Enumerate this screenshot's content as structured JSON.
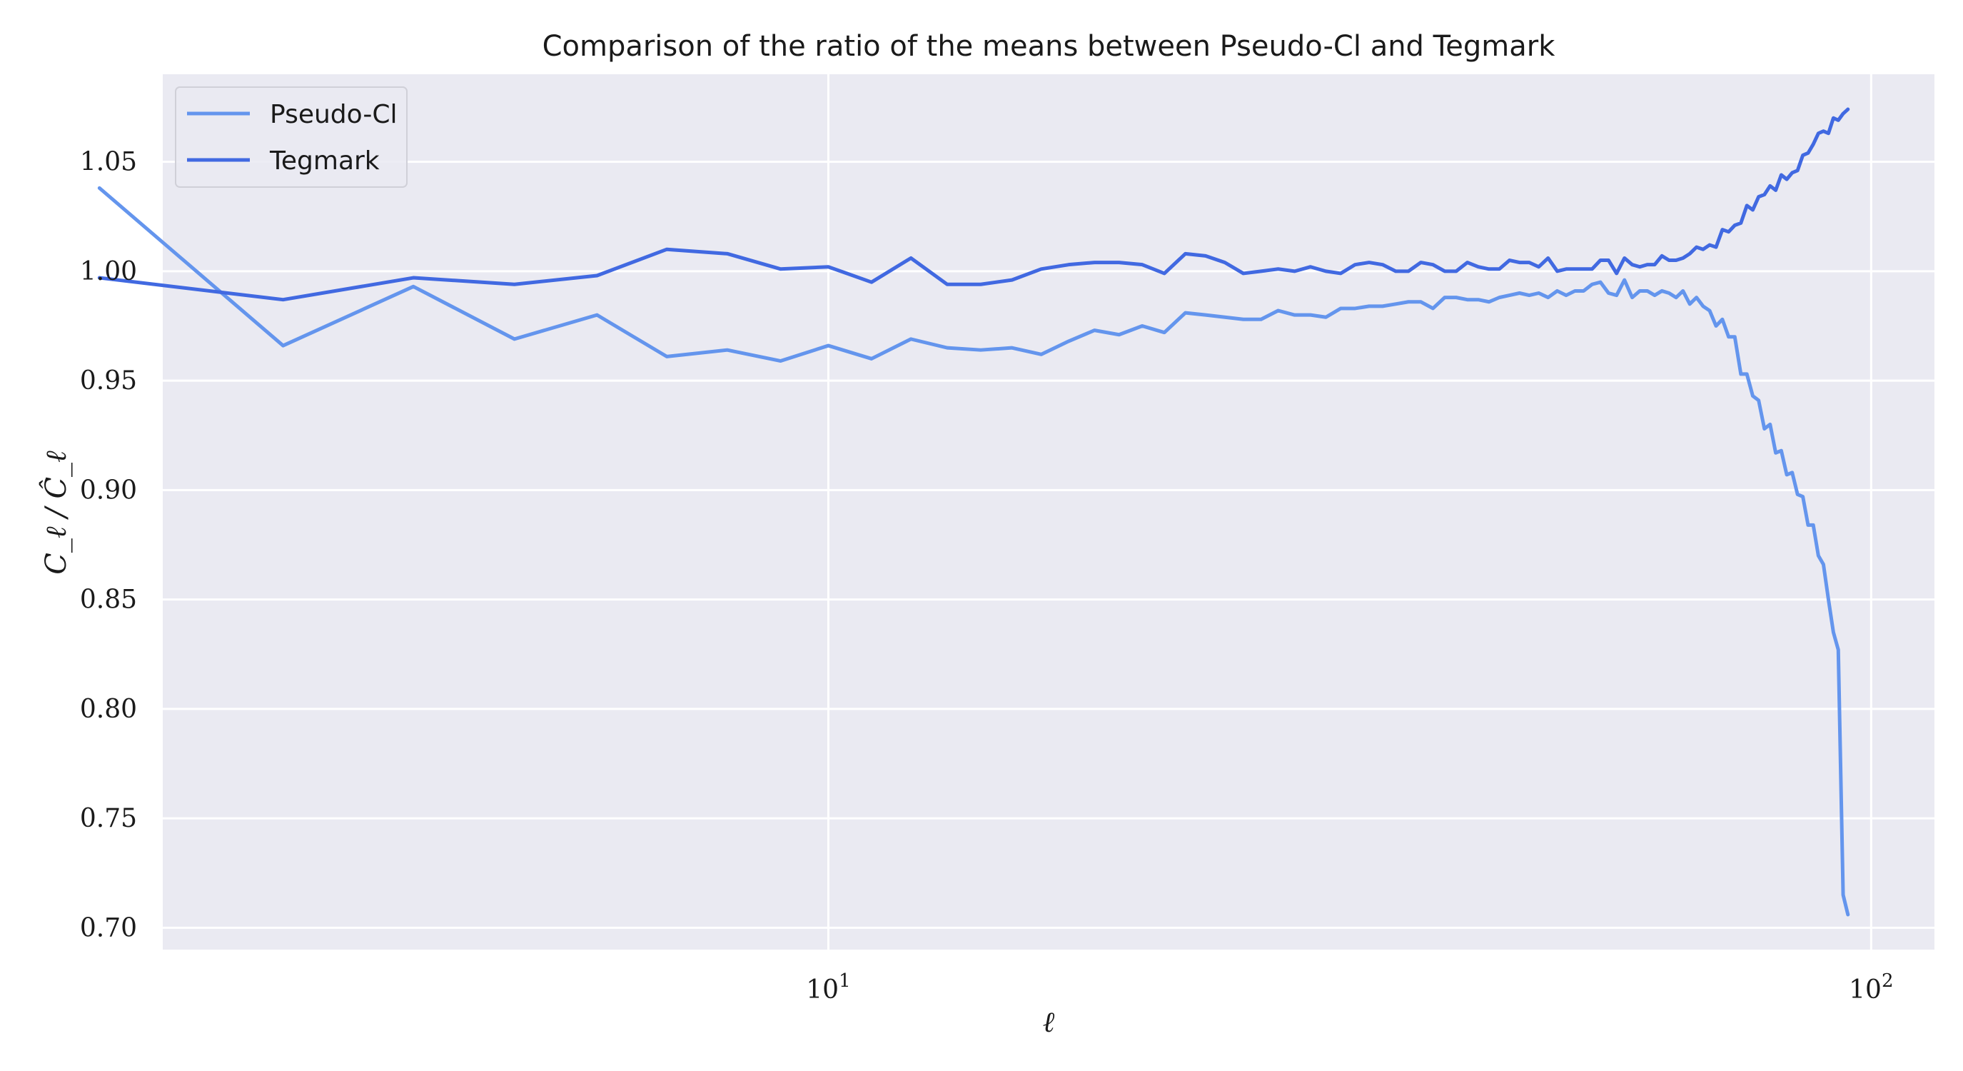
{
  "chart_data": {
    "type": "line",
    "title": "Comparison of the ratio of the means between Pseudo-Cl and Tegmark",
    "xlabel": "ℓ",
    "ylabel": "C_ℓ / Ĉ_ℓ",
    "xscale": "log",
    "xlim": [
      2.3,
      115
    ],
    "ylim": [
      0.69,
      1.09
    ],
    "grid": true,
    "legend_position": "top-left",
    "x_ticks": [
      {
        "value": 10,
        "base": "10",
        "exp": "1"
      },
      {
        "value": 100,
        "base": "10",
        "exp": "2"
      }
    ],
    "y_ticks": [
      0.7,
      0.75,
      0.8,
      0.85,
      0.9,
      0.95,
      1.0,
      1.05
    ],
    "y_tick_labels": [
      "0.70",
      "0.75",
      "0.80",
      "0.85",
      "0.90",
      "0.95",
      "1.00",
      "1.05"
    ],
    "colors": {
      "background": "#eaeaf2",
      "grid": "#ffffff",
      "Pseudo-Cl": "#6495ed",
      "Tegmark": "#4169e1"
    },
    "series": [
      {
        "name": "Pseudo-Cl",
        "color": "#6495ed",
        "points": [
          [
            2,
            1.038
          ],
          [
            3,
            0.966
          ],
          [
            4,
            0.993
          ],
          [
            5,
            0.969
          ],
          [
            6,
            0.98
          ],
          [
            7,
            0.961
          ],
          [
            8,
            0.964
          ],
          [
            9,
            0.959
          ],
          [
            10,
            0.966
          ],
          [
            11,
            0.96
          ],
          [
            12,
            0.969
          ],
          [
            13,
            0.965
          ],
          [
            14,
            0.964
          ],
          [
            15,
            0.965
          ],
          [
            16,
            0.962
          ],
          [
            17,
            0.968
          ],
          [
            18,
            0.973
          ],
          [
            19,
            0.971
          ],
          [
            20,
            0.975
          ],
          [
            21,
            0.972
          ],
          [
            22,
            0.981
          ],
          [
            23,
            0.98
          ],
          [
            24,
            0.979
          ],
          [
            25,
            0.978
          ],
          [
            26,
            0.978
          ],
          [
            27,
            0.982
          ],
          [
            28,
            0.98
          ],
          [
            29,
            0.98
          ],
          [
            30,
            0.979
          ],
          [
            31,
            0.983
          ],
          [
            32,
            0.983
          ],
          [
            33,
            0.984
          ],
          [
            34,
            0.984
          ],
          [
            35,
            0.985
          ],
          [
            36,
            0.986
          ],
          [
            37,
            0.986
          ],
          [
            38,
            0.983
          ],
          [
            39,
            0.988
          ],
          [
            40,
            0.988
          ],
          [
            41,
            0.987
          ],
          [
            42,
            0.987
          ],
          [
            43,
            0.986
          ],
          [
            44,
            0.988
          ],
          [
            45,
            0.989
          ],
          [
            46,
            0.99
          ],
          [
            47,
            0.989
          ],
          [
            48,
            0.99
          ],
          [
            49,
            0.988
          ],
          [
            50,
            0.991
          ],
          [
            51,
            0.989
          ],
          [
            52,
            0.991
          ],
          [
            53,
            0.991
          ],
          [
            54,
            0.994
          ],
          [
            55,
            0.995
          ],
          [
            56,
            0.99
          ],
          [
            57,
            0.989
          ],
          [
            58,
            0.996
          ],
          [
            59,
            0.988
          ],
          [
            60,
            0.991
          ],
          [
            61,
            0.991
          ],
          [
            62,
            0.989
          ],
          [
            63,
            0.991
          ],
          [
            64,
            0.99
          ],
          [
            65,
            0.988
          ],
          [
            66,
            0.991
          ],
          [
            67,
            0.985
          ],
          [
            68,
            0.988
          ],
          [
            69,
            0.984
          ],
          [
            70,
            0.982
          ],
          [
            71,
            0.975
          ],
          [
            72,
            0.978
          ],
          [
            73,
            0.97
          ],
          [
            74,
            0.97
          ],
          [
            75,
            0.953
          ],
          [
            76,
            0.953
          ],
          [
            77,
            0.943
          ],
          [
            78,
            0.941
          ],
          [
            79,
            0.928
          ],
          [
            80,
            0.93
          ],
          [
            81,
            0.917
          ],
          [
            82,
            0.918
          ],
          [
            83,
            0.907
          ],
          [
            84,
            0.908
          ],
          [
            85,
            0.898
          ],
          [
            86,
            0.897
          ],
          [
            87,
            0.884
          ],
          [
            88,
            0.884
          ],
          [
            89,
            0.87
          ],
          [
            90,
            0.866
          ],
          [
            91,
            0.85
          ],
          [
            92,
            0.835
          ],
          [
            93,
            0.827
          ],
          [
            94,
            0.715
          ],
          [
            95,
            0.706
          ]
        ]
      },
      {
        "name": "Tegmark",
        "color": "#4169e1",
        "points": [
          [
            2,
            0.997
          ],
          [
            3,
            0.987
          ],
          [
            4,
            0.997
          ],
          [
            5,
            0.994
          ],
          [
            6,
            0.998
          ],
          [
            7,
            1.01
          ],
          [
            8,
            1.008
          ],
          [
            9,
            1.001
          ],
          [
            10,
            1.002
          ],
          [
            11,
            0.995
          ],
          [
            12,
            1.006
          ],
          [
            13,
            0.994
          ],
          [
            14,
            0.994
          ],
          [
            15,
            0.996
          ],
          [
            16,
            1.001
          ],
          [
            17,
            1.003
          ],
          [
            18,
            1.004
          ],
          [
            19,
            1.004
          ],
          [
            20,
            1.003
          ],
          [
            21,
            0.999
          ],
          [
            22,
            1.008
          ],
          [
            23,
            1.007
          ],
          [
            24,
            1.004
          ],
          [
            25,
            0.999
          ],
          [
            26,
            1.0
          ],
          [
            27,
            1.001
          ],
          [
            28,
            1.0
          ],
          [
            29,
            1.002
          ],
          [
            30,
            1.0
          ],
          [
            31,
            0.999
          ],
          [
            32,
            1.003
          ],
          [
            33,
            1.004
          ],
          [
            34,
            1.003
          ],
          [
            35,
            1.0
          ],
          [
            36,
            1.0
          ],
          [
            37,
            1.004
          ],
          [
            38,
            1.003
          ],
          [
            39,
            1.0
          ],
          [
            40,
            1.0
          ],
          [
            41,
            1.004
          ],
          [
            42,
            1.002
          ],
          [
            43,
            1.001
          ],
          [
            44,
            1.001
          ],
          [
            45,
            1.005
          ],
          [
            46,
            1.004
          ],
          [
            47,
            1.004
          ],
          [
            48,
            1.002
          ],
          [
            49,
            1.006
          ],
          [
            50,
            1.0
          ],
          [
            51,
            1.001
          ],
          [
            52,
            1.001
          ],
          [
            53,
            1.001
          ],
          [
            54,
            1.001
          ],
          [
            55,
            1.005
          ],
          [
            56,
            1.005
          ],
          [
            57,
            0.999
          ],
          [
            58,
            1.006
          ],
          [
            59,
            1.003
          ],
          [
            60,
            1.002
          ],
          [
            61,
            1.003
          ],
          [
            62,
            1.003
          ],
          [
            63,
            1.007
          ],
          [
            64,
            1.005
          ],
          [
            65,
            1.005
          ],
          [
            66,
            1.006
          ],
          [
            67,
            1.008
          ],
          [
            68,
            1.011
          ],
          [
            69,
            1.01
          ],
          [
            70,
            1.012
          ],
          [
            71,
            1.011
          ],
          [
            72,
            1.019
          ],
          [
            73,
            1.018
          ],
          [
            74,
            1.021
          ],
          [
            75,
            1.022
          ],
          [
            76,
            1.03
          ],
          [
            77,
            1.028
          ],
          [
            78,
            1.034
          ],
          [
            79,
            1.035
          ],
          [
            80,
            1.039
          ],
          [
            81,
            1.037
          ],
          [
            82,
            1.044
          ],
          [
            83,
            1.042
          ],
          [
            84,
            1.045
          ],
          [
            85,
            1.046
          ],
          [
            86,
            1.053
          ],
          [
            87,
            1.054
          ],
          [
            88,
            1.058
          ],
          [
            89,
            1.063
          ],
          [
            90,
            1.064
          ],
          [
            91,
            1.063
          ],
          [
            92,
            1.07
          ],
          [
            93,
            1.069
          ],
          [
            94,
            1.072
          ],
          [
            95,
            1.074
          ]
        ]
      }
    ]
  }
}
